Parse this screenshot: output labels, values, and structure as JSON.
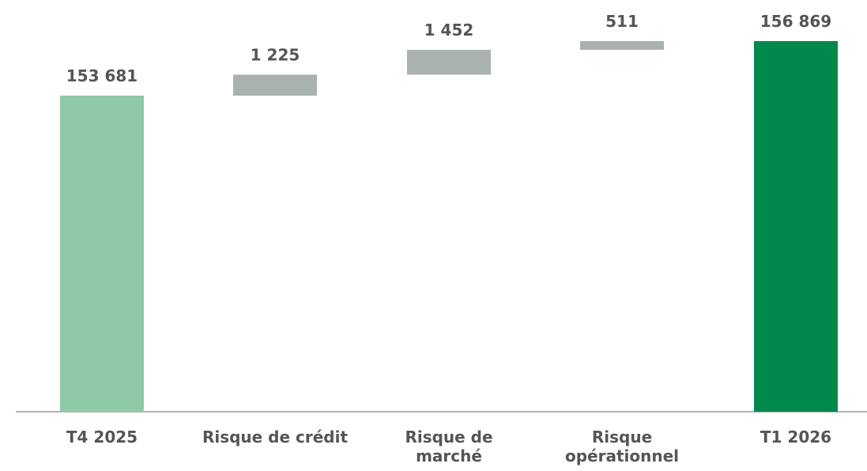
{
  "chart_data": {
    "type": "waterfall",
    "categories": [
      "T4 2025",
      "Risque de crédit",
      "Risque de\nmarché",
      "Risque\nopérationnel",
      "T1 2026"
    ],
    "values": [
      153681,
      1225,
      1452,
      511,
      156869
    ],
    "value_labels": [
      "153 681",
      "1 225",
      "1 452",
      "511",
      "156 869"
    ],
    "totals": [
      true,
      false,
      false,
      false,
      true
    ],
    "colors": [
      "#8fc9a6",
      "#a9b2ae",
      "#a9b2ae",
      "#a9b2ae",
      "#00894a"
    ],
    "ylim": [
      135200,
      157400
    ]
  }
}
